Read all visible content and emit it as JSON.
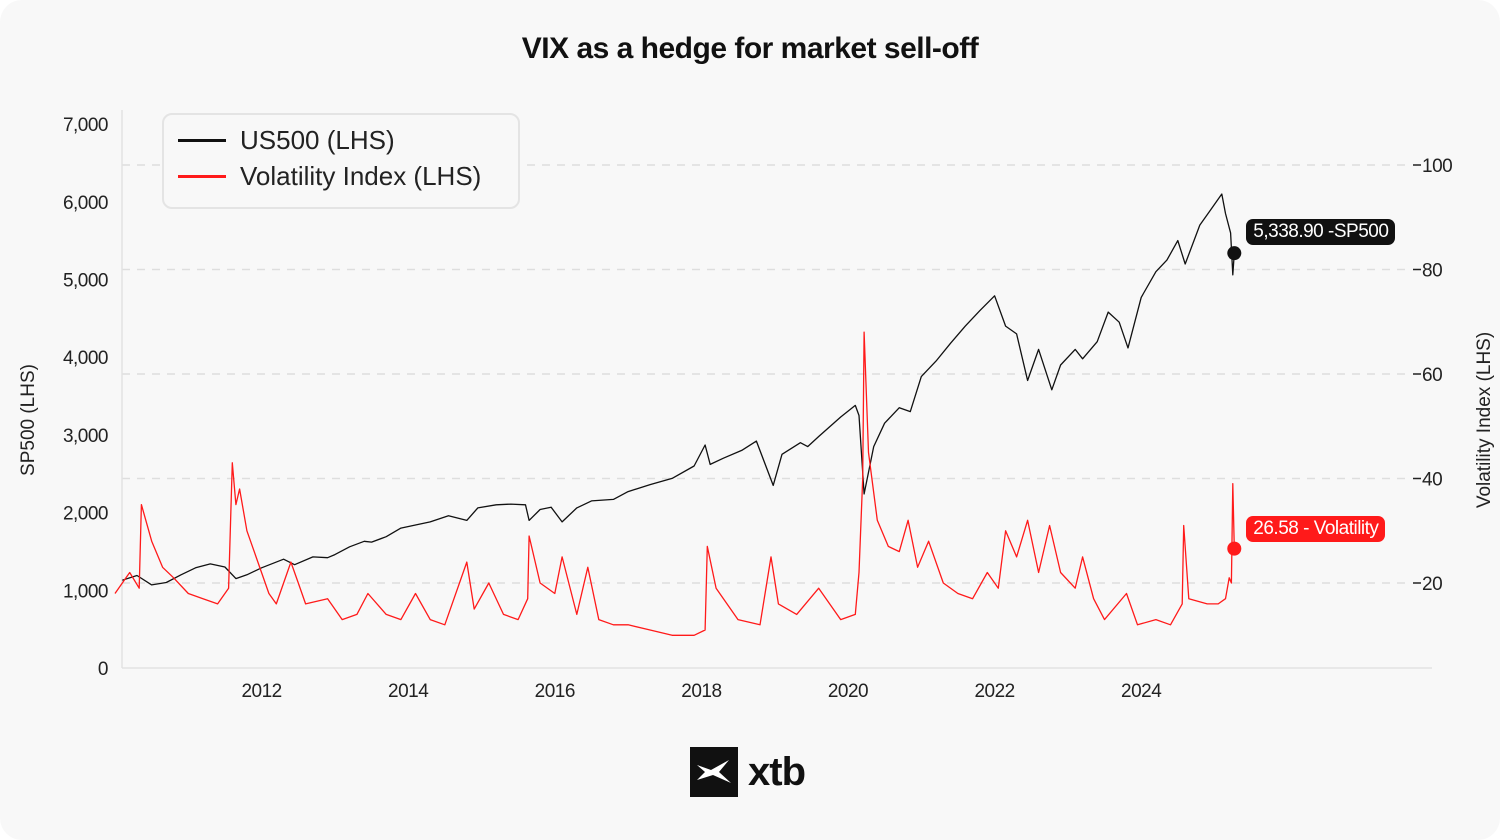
{
  "chart_data": {
    "type": "line",
    "title": "VIX as a hedge for market sell-off",
    "ylabel_left": "SP500 (LHS)",
    "ylabel_right": "Volatility Index (LHS)",
    "xlim": [
      2010,
      2026.6
    ],
    "ylim_left": [
      0,
      7000
    ],
    "ylim_right": [
      0,
      100
    ],
    "x_ticks": [
      2012,
      2014,
      2016,
      2018,
      2020,
      2022,
      2024
    ],
    "y_ticks_left": [
      0,
      1000,
      2000,
      3000,
      4000,
      5000,
      6000,
      7000
    ],
    "y_ticks_left_labels": [
      "0",
      "1,000",
      "2,000",
      "3,000",
      "4,000",
      "5,000",
      "6,000",
      "7,000"
    ],
    "y_ticks_right": [
      20,
      40,
      60,
      80,
      100
    ],
    "grid": "horizontal dashed",
    "legend_placement": "top-left",
    "series": [
      {
        "name": "US500 (LHS)",
        "axis": "left",
        "color": "#111111",
        "x": [
          2010.1,
          2010.3,
          2010.5,
          2010.7,
          2010.9,
          2011.1,
          2011.3,
          2011.5,
          2011.65,
          2011.8,
          2012.0,
          2012.3,
          2012.45,
          2012.7,
          2012.9,
          2013.0,
          2013.2,
          2013.4,
          2013.5,
          2013.7,
          2013.9,
          2014.1,
          2014.3,
          2014.55,
          2014.8,
          2014.95,
          2015.2,
          2015.4,
          2015.6,
          2015.65,
          2015.8,
          2015.95,
          2016.1,
          2016.3,
          2016.5,
          2016.8,
          2017.0,
          2017.3,
          2017.6,
          2017.9,
          2018.05,
          2018.12,
          2018.3,
          2018.55,
          2018.75,
          2018.98,
          2019.1,
          2019.35,
          2019.45,
          2019.6,
          2019.9,
          2020.1,
          2020.15,
          2020.22,
          2020.35,
          2020.5,
          2020.7,
          2020.85,
          2021.0,
          2021.2,
          2021.4,
          2021.6,
          2021.8,
          2022.0,
          2022.15,
          2022.3,
          2022.45,
          2022.6,
          2022.78,
          2022.9,
          2023.1,
          2023.2,
          2023.4,
          2023.55,
          2023.7,
          2023.82,
          2024.0,
          2024.2,
          2024.35,
          2024.5,
          2024.6,
          2024.8,
          2024.95,
          2025.1,
          2025.15,
          2025.22,
          2025.25,
          2025.27
        ],
        "y": [
          1130,
          1190,
          1070,
          1100,
          1200,
          1290,
          1340,
          1300,
          1150,
          1200,
          1290,
          1400,
          1330,
          1430,
          1420,
          1460,
          1560,
          1630,
          1620,
          1690,
          1800,
          1840,
          1880,
          1960,
          1900,
          2060,
          2100,
          2110,
          2100,
          1900,
          2040,
          2070,
          1880,
          2060,
          2150,
          2170,
          2270,
          2360,
          2440,
          2600,
          2870,
          2620,
          2700,
          2800,
          2920,
          2350,
          2750,
          2900,
          2850,
          2980,
          3230,
          3380,
          3250,
          2240,
          2850,
          3150,
          3350,
          3300,
          3750,
          3950,
          4180,
          4400,
          4600,
          4790,
          4400,
          4300,
          3700,
          4100,
          3580,
          3900,
          4100,
          3980,
          4200,
          4580,
          4450,
          4120,
          4770,
          5100,
          5250,
          5500,
          5200,
          5700,
          5900,
          6100,
          5850,
          5600,
          5060,
          5338.9
        ]
      },
      {
        "name": "Volatility Index (LHS)",
        "axis": "right",
        "color": "#ff1a1a",
        "x": [
          2010.0,
          2010.2,
          2010.33,
          2010.36,
          2010.5,
          2010.65,
          2010.8,
          2011.0,
          2011.2,
          2011.4,
          2011.55,
          2011.6,
          2011.65,
          2011.7,
          2011.8,
          2011.95,
          2012.1,
          2012.2,
          2012.4,
          2012.5,
          2012.6,
          2012.9,
          2013.1,
          2013.3,
          2013.45,
          2013.7,
          2013.9,
          2014.1,
          2014.3,
          2014.5,
          2014.8,
          2014.9,
          2015.1,
          2015.3,
          2015.5,
          2015.63,
          2015.65,
          2015.8,
          2016.0,
          2016.1,
          2016.3,
          2016.45,
          2016.6,
          2016.8,
          2017.0,
          2017.3,
          2017.6,
          2017.9,
          2018.05,
          2018.08,
          2018.2,
          2018.5,
          2018.8,
          2018.95,
          2019.05,
          2019.3,
          2019.6,
          2019.9,
          2020.1,
          2020.15,
          2020.2,
          2020.22,
          2020.28,
          2020.4,
          2020.55,
          2020.7,
          2020.82,
          2020.95,
          2021.1,
          2021.3,
          2021.5,
          2021.7,
          2021.9,
          2022.05,
          2022.15,
          2022.3,
          2022.45,
          2022.6,
          2022.75,
          2022.9,
          2023.1,
          2023.2,
          2023.35,
          2023.5,
          2023.8,
          2023.95,
          2024.2,
          2024.4,
          2024.56,
          2024.58,
          2024.65,
          2024.9,
          2025.05,
          2025.15,
          2025.2,
          2025.23,
          2025.25,
          2025.27
        ],
        "y": [
          18,
          22,
          19,
          35,
          28,
          23,
          21,
          18,
          17,
          16,
          19,
          43,
          35,
          38,
          30,
          24,
          18,
          16,
          24,
          20,
          16,
          17,
          13,
          14,
          18,
          14,
          13,
          18,
          13,
          12,
          24,
          15,
          20,
          14,
          13,
          17,
          29,
          20,
          18,
          25,
          14,
          23,
          13,
          12,
          12,
          11,
          10,
          10,
          11,
          27,
          19,
          13,
          12,
          25,
          16,
          14,
          19,
          13,
          14,
          22,
          40,
          68,
          45,
          32,
          27,
          26,
          32,
          23,
          28,
          20,
          18,
          17,
          22,
          19,
          30,
          25,
          32,
          22,
          31,
          22,
          19,
          25,
          17,
          13,
          18,
          12,
          13,
          12,
          16,
          31,
          17,
          16,
          16,
          17,
          21,
          20,
          39,
          26.58
        ]
      }
    ],
    "annotations": [
      {
        "label": "5,338.90 -SP500",
        "series": "US500 (LHS)",
        "x": 2025.27,
        "y": 5338.9,
        "color": "#111111"
      },
      {
        "label": "26.58 - Volatility",
        "series": "Volatility Index (LHS)",
        "x": 2025.27,
        "y": 26.58,
        "color": "#ff1a1a"
      }
    ]
  },
  "brand": {
    "name": "xtb"
  }
}
